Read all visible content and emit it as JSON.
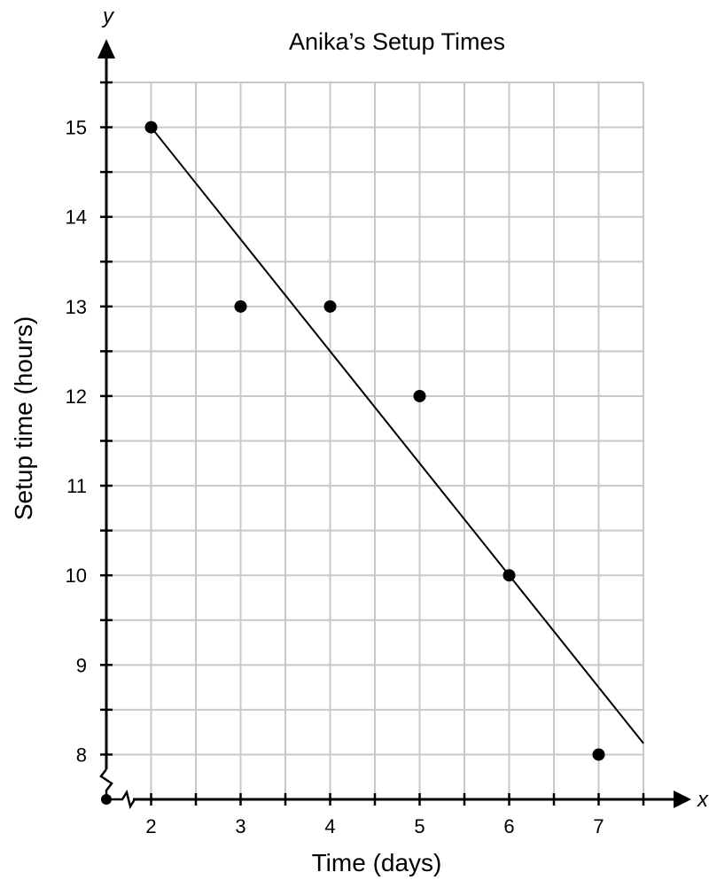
{
  "chart_data": {
    "type": "scatter",
    "title": "Anika’s Setup Times",
    "xlabel": "Time (days)",
    "ylabel": "Setup time (hours)",
    "x_axis_letter": "x",
    "y_axis_letter": "y",
    "x_ticks": [
      "2",
      "3",
      "4",
      "5",
      "6",
      "7"
    ],
    "y_ticks": [
      "8",
      "9",
      "10",
      "11",
      "12",
      "13",
      "14",
      "15"
    ],
    "xlim": [
      1.5,
      7.5
    ],
    "ylim": [
      7.5,
      15.5
    ],
    "grid": true,
    "axis_breaks": [
      "x",
      "y"
    ],
    "points": [
      {
        "x": 2,
        "y": 15
      },
      {
        "x": 3,
        "y": 13
      },
      {
        "x": 4,
        "y": 13
      },
      {
        "x": 5,
        "y": 12
      },
      {
        "x": 6,
        "y": 10
      },
      {
        "x": 7,
        "y": 8
      }
    ],
    "trend_line": {
      "x1": 2,
      "y1": 15,
      "x2": 7.5,
      "y2": 8.125
    }
  }
}
